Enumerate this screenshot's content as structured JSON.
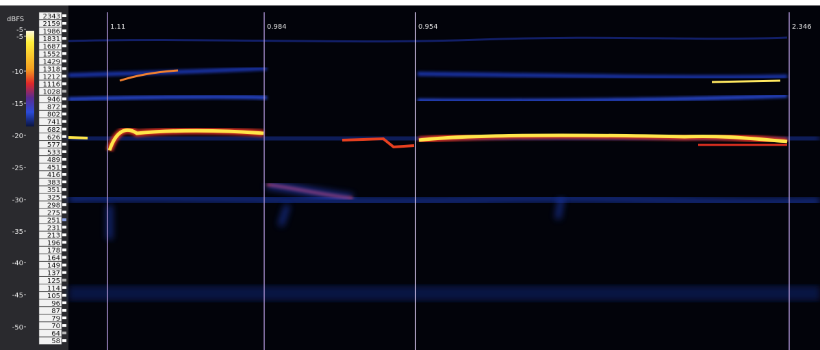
{
  "scale": {
    "unit": "dBFS",
    "labels": [
      "-5",
      "-5",
      "-10",
      "-15",
      "-20",
      "-25",
      "-30",
      "-35",
      "-40",
      "-45",
      "-50"
    ]
  },
  "frequencies": [
    "2343",
    "2159",
    "1986",
    "1831",
    "1687",
    "1552",
    "1429",
    "1318",
    "1212",
    "1116",
    "1028",
    "946",
    "872",
    "802",
    "741",
    "682",
    "626",
    "577",
    "533",
    "489",
    "451",
    "416",
    "383",
    "351",
    "325",
    "298",
    "275",
    "251",
    "231",
    "213",
    "196",
    "178",
    "164",
    "149",
    "137",
    "125",
    "114",
    "105",
    "96",
    "87",
    "79",
    "70",
    "64",
    "58"
  ],
  "markers": [
    "1.11",
    "0.984",
    "0.954",
    "2.346"
  ]
}
